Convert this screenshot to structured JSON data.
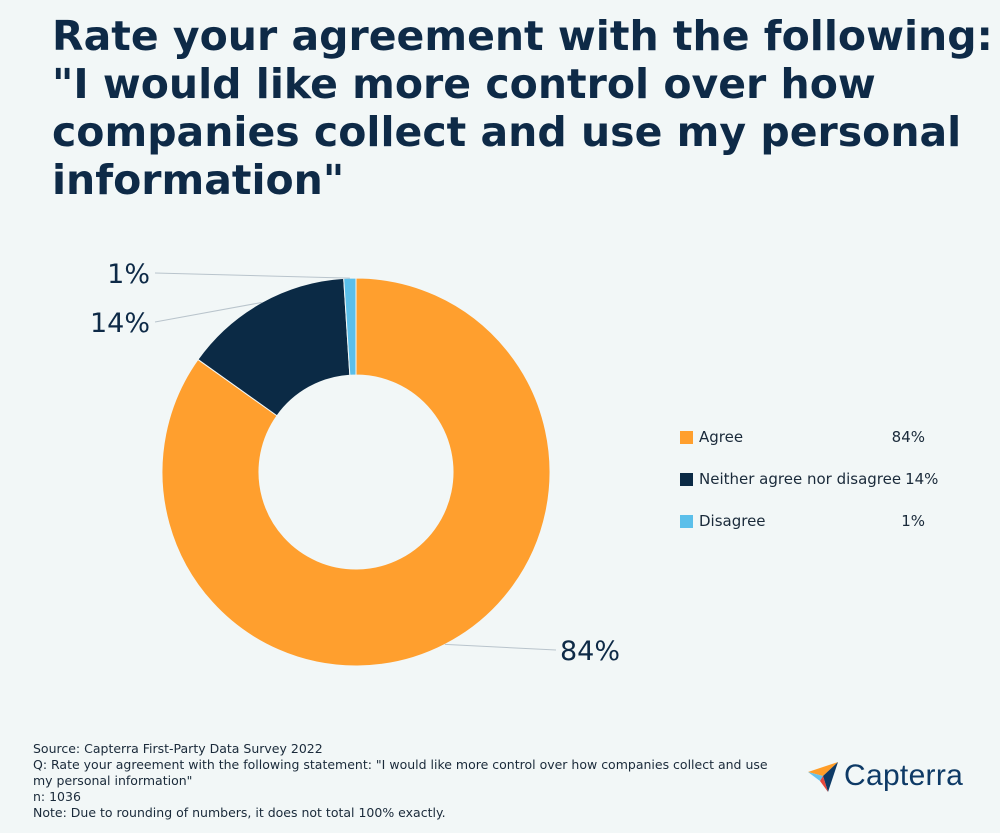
{
  "title_lines": [
    "Rate your agreement with the following:",
    "\"I would like more control over how",
    "companies collect and use my personal",
    "information\""
  ],
  "chart_data": {
    "type": "pie",
    "donut": true,
    "title": "Rate your agreement with the following: \"I would like more control over how companies collect and use my personal information\"",
    "categories": [
      "Agree",
      "Neither agree nor disagree",
      "Disagree"
    ],
    "values": [
      84,
      14,
      1
    ],
    "labels": [
      "84%",
      "14%",
      "1%"
    ],
    "colors": [
      "#ff9f2e",
      "#0b2a45",
      "#5bbfea"
    ],
    "legend_position": "right"
  },
  "legend": [
    {
      "label": "Agree",
      "value": "84%",
      "color": "#ff9f2e"
    },
    {
      "label": "Neither agree nor disagree",
      "value": "14%",
      "color": "#0b2a45"
    },
    {
      "label": "Disagree",
      "value": "1%",
      "color": "#5bbfea"
    }
  ],
  "footer": {
    "source": "Source: Capterra First-Party Data Survey 2022",
    "question_line1": "Q: Rate your agreement with the following statement: \"I would like more control over how companies collect and use",
    "question_line2": "my personal information\"",
    "n": "n: 1036",
    "note": "Note: Due to rounding of numbers, it does not total 100% exactly."
  },
  "logo": {
    "text": "Capterra"
  },
  "colors": {
    "background": "#f2f7f7",
    "title": "#0e2a47",
    "brand": "#0e3a66"
  }
}
